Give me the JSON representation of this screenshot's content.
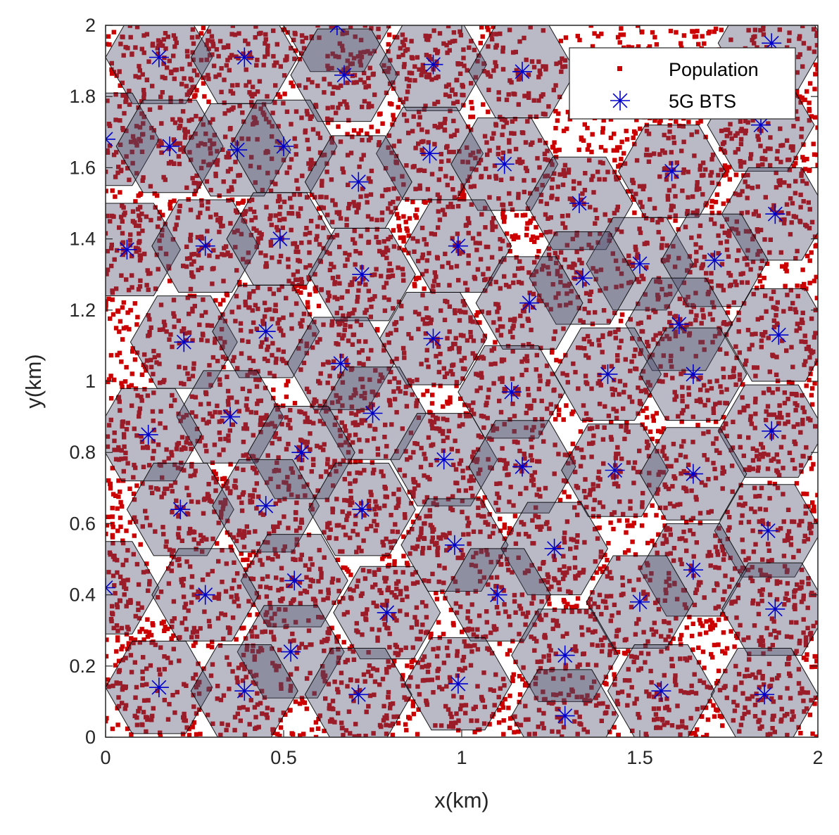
{
  "chart_data": {
    "type": "scatter",
    "title": "",
    "xlabel": "x(km)",
    "ylabel": "y(km)",
    "xlim": [
      0,
      2
    ],
    "ylim": [
      0,
      2
    ],
    "xticks": [
      "0",
      "0.5",
      "1",
      "1.5",
      "2"
    ],
    "yticks": [
      "0",
      "0.2",
      "0.4",
      "0.6",
      "0.8",
      "1",
      "1.2",
      "1.4",
      "1.6",
      "1.8",
      "2"
    ],
    "legend_position": "top-right",
    "colors": {
      "population": "#cc0000",
      "bts": "#0000cc",
      "cell_fill": "#b8b8cc",
      "overlap_fill": "#4a4a68",
      "cell_edge": "#000000"
    },
    "series": [
      {
        "name": "Population",
        "marker": "square",
        "approx_count": 9000,
        "note_random": true
      },
      {
        "name": "5G BTS",
        "marker": "asterisk",
        "points": [
          [
            0.65,
            2.0
          ],
          [
            0.15,
            1.91
          ],
          [
            0.39,
            1.91
          ],
          [
            0.67,
            1.86
          ],
          [
            0.92,
            1.89
          ],
          [
            1.17,
            1.87
          ],
          [
            1.87,
            1.95
          ],
          [
            0.0,
            1.68
          ],
          [
            0.18,
            1.66
          ],
          [
            0.37,
            1.65
          ],
          [
            0.5,
            1.66
          ],
          [
            0.91,
            1.64
          ],
          [
            1.12,
            1.61
          ],
          [
            1.59,
            1.59
          ],
          [
            1.84,
            1.72
          ],
          [
            0.71,
            1.56
          ],
          [
            1.33,
            1.5
          ],
          [
            1.88,
            1.47
          ],
          [
            0.06,
            1.37
          ],
          [
            0.28,
            1.38
          ],
          [
            0.49,
            1.4
          ],
          [
            0.99,
            1.38
          ],
          [
            1.5,
            1.33
          ],
          [
            1.71,
            1.34
          ],
          [
            0.72,
            1.3
          ],
          [
            1.34,
            1.29
          ],
          [
            1.19,
            1.22
          ],
          [
            1.61,
            1.16
          ],
          [
            0.22,
            1.11
          ],
          [
            0.45,
            1.14
          ],
          [
            0.92,
            1.12
          ],
          [
            1.89,
            1.13
          ],
          [
            0.66,
            1.05
          ],
          [
            1.41,
            1.02
          ],
          [
            1.65,
            1.02
          ],
          [
            1.14,
            0.97
          ],
          [
            0.35,
            0.9
          ],
          [
            0.75,
            0.91
          ],
          [
            0.12,
            0.85
          ],
          [
            1.87,
            0.86
          ],
          [
            0.55,
            0.8
          ],
          [
            0.95,
            0.78
          ],
          [
            1.17,
            0.76
          ],
          [
            1.43,
            0.75
          ],
          [
            1.65,
            0.74
          ],
          [
            0.21,
            0.64
          ],
          [
            0.45,
            0.65
          ],
          [
            0.72,
            0.64
          ],
          [
            1.86,
            0.58
          ],
          [
            0.98,
            0.54
          ],
          [
            1.26,
            0.53
          ],
          [
            1.65,
            0.47
          ],
          [
            0.0,
            0.42
          ],
          [
            0.53,
            0.44
          ],
          [
            0.28,
            0.4
          ],
          [
            1.1,
            0.4
          ],
          [
            1.5,
            0.38
          ],
          [
            1.88,
            0.36
          ],
          [
            0.79,
            0.35
          ],
          [
            0.52,
            0.24
          ],
          [
            1.29,
            0.23
          ],
          [
            0.15,
            0.14
          ],
          [
            0.39,
            0.13
          ],
          [
            0.71,
            0.12
          ],
          [
            0.99,
            0.15
          ],
          [
            1.56,
            0.13
          ],
          [
            1.85,
            0.12
          ],
          [
            1.29,
            0.06
          ]
        ]
      }
    ]
  }
}
